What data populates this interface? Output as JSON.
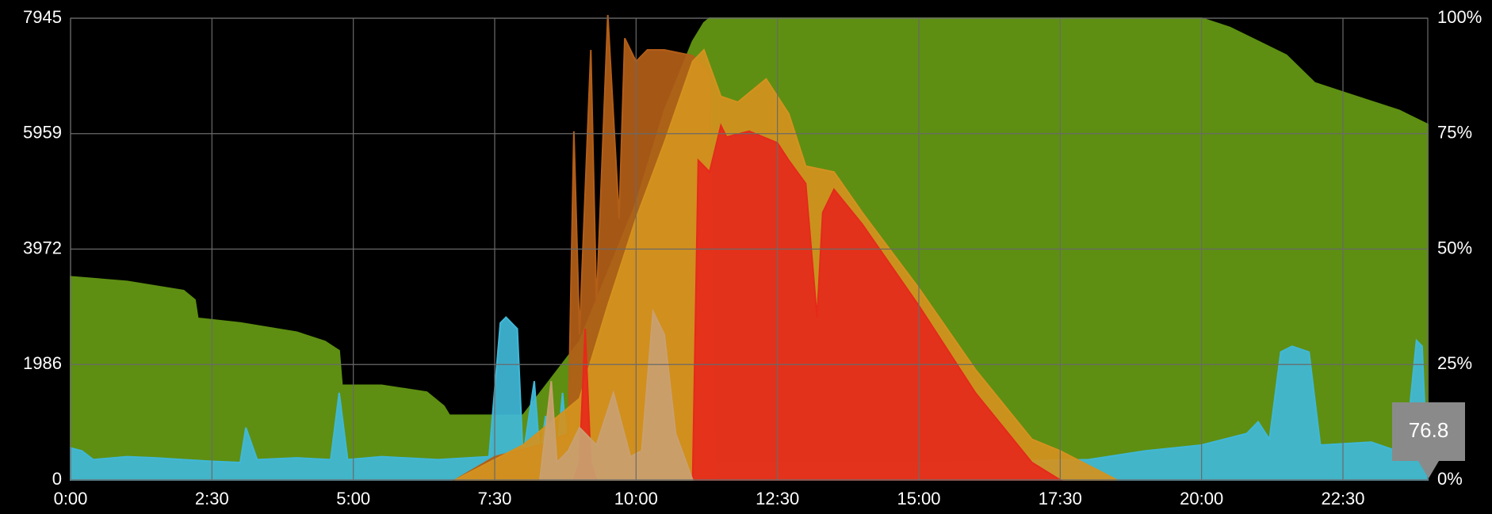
{
  "chart_data": {
    "type": "area",
    "xlim": [
      0,
      24
    ],
    "xticks": [
      {
        "value": 0,
        "label": "0:00"
      },
      {
        "value": 2.5,
        "label": "2:30"
      },
      {
        "value": 5,
        "label": "5:00"
      },
      {
        "value": 7.5,
        "label": "7:30"
      },
      {
        "value": 10,
        "label": "10:00"
      },
      {
        "value": 12.5,
        "label": "12:30"
      },
      {
        "value": 15,
        "label": "15:00"
      },
      {
        "value": 17.5,
        "label": "17:30"
      },
      {
        "value": 20,
        "label": "20:00"
      },
      {
        "value": 22.5,
        "label": "22:30"
      }
    ],
    "ylim": [
      0,
      7945
    ],
    "yticks": [
      0,
      1986,
      3972,
      5959,
      7945
    ],
    "y2lim": [
      0,
      100
    ],
    "y2ticks": [
      {
        "value": 0,
        "label": "0%"
      },
      {
        "value": 25,
        "label": "25%"
      },
      {
        "value": 50,
        "label": "50%"
      },
      {
        "value": 75,
        "label": "75%"
      },
      {
        "value": 100,
        "label": "100%"
      }
    ],
    "grid": true,
    "tooltip": "76.8",
    "series": [
      {
        "color": "#5e8f12",
        "axis": "y2",
        "x": [
          0,
          1,
          2,
          2.2,
          2.25,
          3,
          3.5,
          4,
          4.5,
          4.75,
          4.8,
          5.5,
          6.3,
          6.6,
          6.7,
          7.5,
          8,
          9,
          10,
          10.5,
          11,
          11.2,
          11.3,
          20,
          20.5,
          21,
          21.5,
          22,
          22.5,
          23,
          23.5,
          24
        ],
        "values": [
          44,
          43,
          41,
          39,
          35,
          34,
          33,
          32,
          30,
          28,
          20.5,
          20.5,
          19,
          16,
          14,
          14,
          14,
          30,
          60,
          80,
          95,
          99,
          100,
          100,
          98,
          95,
          92,
          86,
          84,
          82,
          80,
          77
        ]
      },
      {
        "color": "#40b8d8",
        "x": [
          0,
          0.2,
          0.4,
          1,
          1.5,
          2,
          2.5,
          3,
          3.1,
          3.3,
          4,
          4.6,
          4.75,
          4.9,
          5.5,
          6.5,
          7.4,
          7.6,
          7.7,
          7.9,
          8.0,
          8.2,
          8.3,
          8.4,
          8.6,
          8.7,
          8.8,
          9,
          10,
          15,
          18,
          19,
          20,
          20.8,
          21,
          21.2,
          21.4,
          21.6,
          21.9,
          22.1,
          23,
          23.6,
          23.8,
          23.9,
          24
        ],
        "values": [
          550,
          500,
          350,
          400,
          380,
          350,
          320,
          300,
          900,
          350,
          380,
          350,
          1500,
          350,
          400,
          350,
          400,
          2700,
          2800,
          2600,
          400,
          1700,
          400,
          1100,
          400,
          1500,
          300,
          400,
          300,
          300,
          350,
          500,
          600,
          800,
          1000,
          700,
          2200,
          2300,
          2200,
          600,
          650,
          450,
          2400,
          2300,
          0
        ]
      },
      {
        "color": "#b35e18",
        "x": [
          6.8,
          7.5,
          8.3,
          8.8,
          8.9,
          9.0,
          9.2,
          9.3,
          9.5,
          9.7,
          9.8,
          10.0,
          10.2,
          10.5,
          11.0,
          11.3,
          11.4
        ],
        "values": [
          0,
          400,
          600,
          800,
          6000,
          2500,
          7400,
          3000,
          8000,
          4500,
          7600,
          7200,
          7400,
          7400,
          7300,
          7000,
          0
        ]
      },
      {
        "color": "#d4921e",
        "x": [
          6.8,
          8,
          9,
          9.5,
          10,
          10.5,
          11,
          11.2,
          11.5,
          11.8,
          12.3,
          12.7,
          13,
          13.5,
          14,
          15,
          16,
          17,
          17.5,
          18,
          18.5
        ],
        "values": [
          0,
          600,
          1400,
          3000,
          4500,
          5800,
          7200,
          7400,
          6600,
          6500,
          6900,
          6300,
          5400,
          5300,
          4600,
          3300,
          1900,
          700,
          500,
          250,
          0
        ]
      },
      {
        "color": "#e52a1b",
        "x": [
          8.9,
          9.0,
          9.1,
          9.2,
          9.3,
          11.0,
          11.1,
          11.3,
          11.5,
          11.6,
          12,
          12.5,
          12.7,
          13,
          13.2,
          13.3,
          13.5,
          14,
          15,
          16,
          17,
          17.5
        ],
        "values": [
          0,
          300,
          2600,
          300,
          0,
          0,
          5500,
          5300,
          6100,
          5900,
          6000,
          5800,
          5500,
          5100,
          2800,
          4600,
          5000,
          4400,
          3000,
          1500,
          300,
          0
        ]
      },
      {
        "color": "#c9a070",
        "x": [
          8.3,
          8.5,
          8.6,
          8.8,
          9.0,
          9.3,
          9.6,
          9.9,
          10.1,
          10.3,
          10.5,
          10.7,
          11.0
        ],
        "values": [
          0,
          1700,
          300,
          500,
          900,
          600,
          1500,
          400,
          500,
          2900,
          2500,
          800,
          0
        ]
      }
    ]
  }
}
